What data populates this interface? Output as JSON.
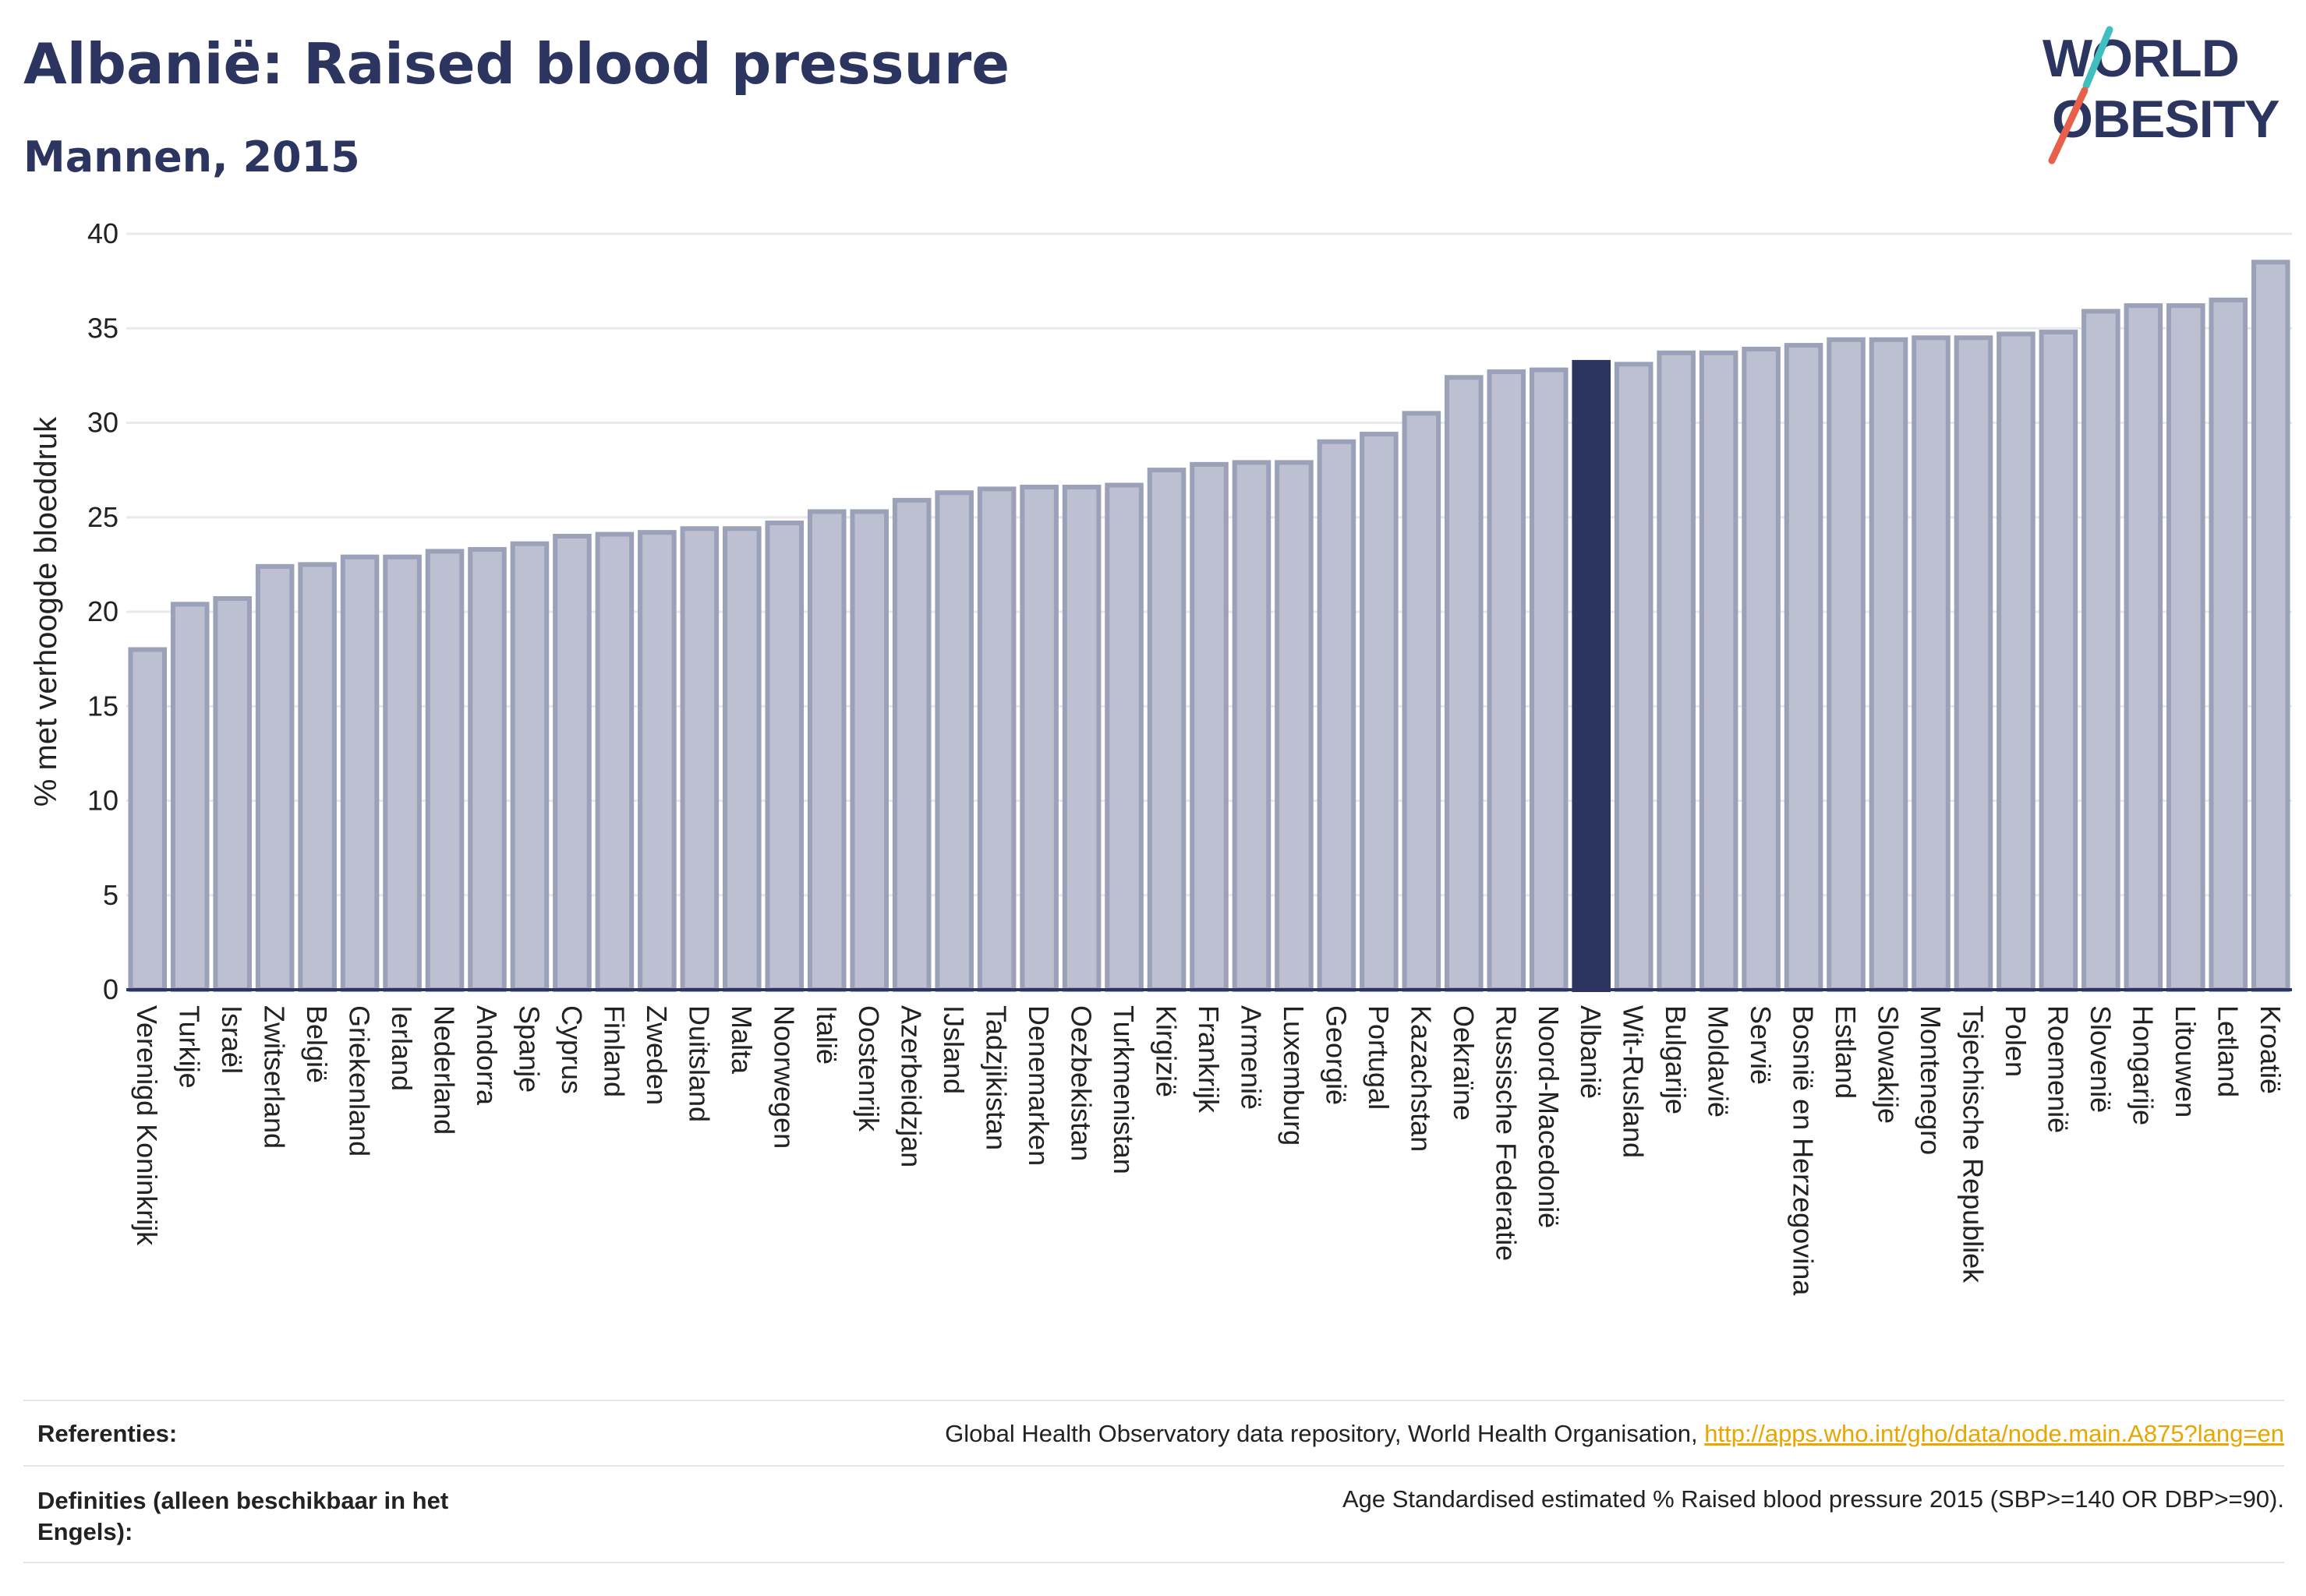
{
  "header": {
    "title": "Albanië: Raised blood pressure",
    "subtitle": "Mannen, 2015"
  },
  "logo": {
    "line1": "WORLD",
    "line2": "OBESITY",
    "name": "world-obesity-logo"
  },
  "colors": {
    "title": "#2b3560",
    "bar": "#bcc0d0",
    "bar_border": "#9aa1b8",
    "highlight": "#2b3560",
    "grid": "#e8e8ee",
    "axis": "#2b3560",
    "link": "#e8a600",
    "logo_accent_teal": "#3fbfbf",
    "logo_accent_red": "#e8604c"
  },
  "chart_data": {
    "type": "bar",
    "title": "Albanië: Raised blood pressure",
    "subtitle": "Mannen, 2015",
    "xlabel": "",
    "ylabel": "% met verhoogde bloeddruk",
    "ylim": [
      0,
      40
    ],
    "yticks": [
      0,
      5,
      10,
      15,
      20,
      25,
      30,
      35,
      40
    ],
    "grid": true,
    "highlight": "Albanië",
    "categories": [
      "Verenigd Koninkrijk",
      "Turkije",
      "Israël",
      "Zwitserland",
      "België",
      "Griekenland",
      "Ierland",
      "Nederland",
      "Andorra",
      "Spanje",
      "Cyprus",
      "Finland",
      "Zweden",
      "Duitsland",
      "Malta",
      "Noorwegen",
      "Italië",
      "Oostenrijk",
      "Azerbeidzjan",
      "IJsland",
      "Tadzjikistan",
      "Denemarken",
      "Oezbekistan",
      "Turkmenistan",
      "Kirgizië",
      "Frankrijk",
      "Armenië",
      "Luxemburg",
      "Georgië",
      "Portugal",
      "Kazachstan",
      "Oekraïne",
      "Russische Federatie",
      "Noord-Macedonië",
      "Albanië",
      "Wit-Rusland",
      "Bulgarije",
      "Moldavië",
      "Servië",
      "Bosnië en Herzegovina",
      "Estland",
      "Slowakije",
      "Montenegro",
      "Tsjechische Republiek",
      "Polen",
      "Roemenië",
      "Slovenië",
      "Hongarije",
      "Litouwen",
      "Letland",
      "Kroatië"
    ],
    "values": [
      18.0,
      20.4,
      20.7,
      22.4,
      22.5,
      22.9,
      22.9,
      23.2,
      23.3,
      23.6,
      24.0,
      24.1,
      24.2,
      24.4,
      24.4,
      24.7,
      25.3,
      25.3,
      25.9,
      26.3,
      26.5,
      26.6,
      26.6,
      26.7,
      27.5,
      27.8,
      27.9,
      27.9,
      29.0,
      29.4,
      30.5,
      32.4,
      32.7,
      32.8,
      33.2,
      33.1,
      33.7,
      33.7,
      33.9,
      34.1,
      34.4,
      34.4,
      34.5,
      34.5,
      34.7,
      34.8,
      35.9,
      36.2,
      36.2,
      36.5,
      38.5
    ]
  },
  "footer": {
    "references_label": "Referenties:",
    "references_text": "Global Health Observatory data repository, World Health Organisation,",
    "references_link": "http://apps.who.int/gho/data/node.main.A875?lang=en",
    "definitions_label": "Definities (alleen beschikbaar in het Engels):",
    "definitions_text": "Age Standardised estimated % Raised blood pressure 2015 (SBP>=140 OR DBP>=90)."
  }
}
